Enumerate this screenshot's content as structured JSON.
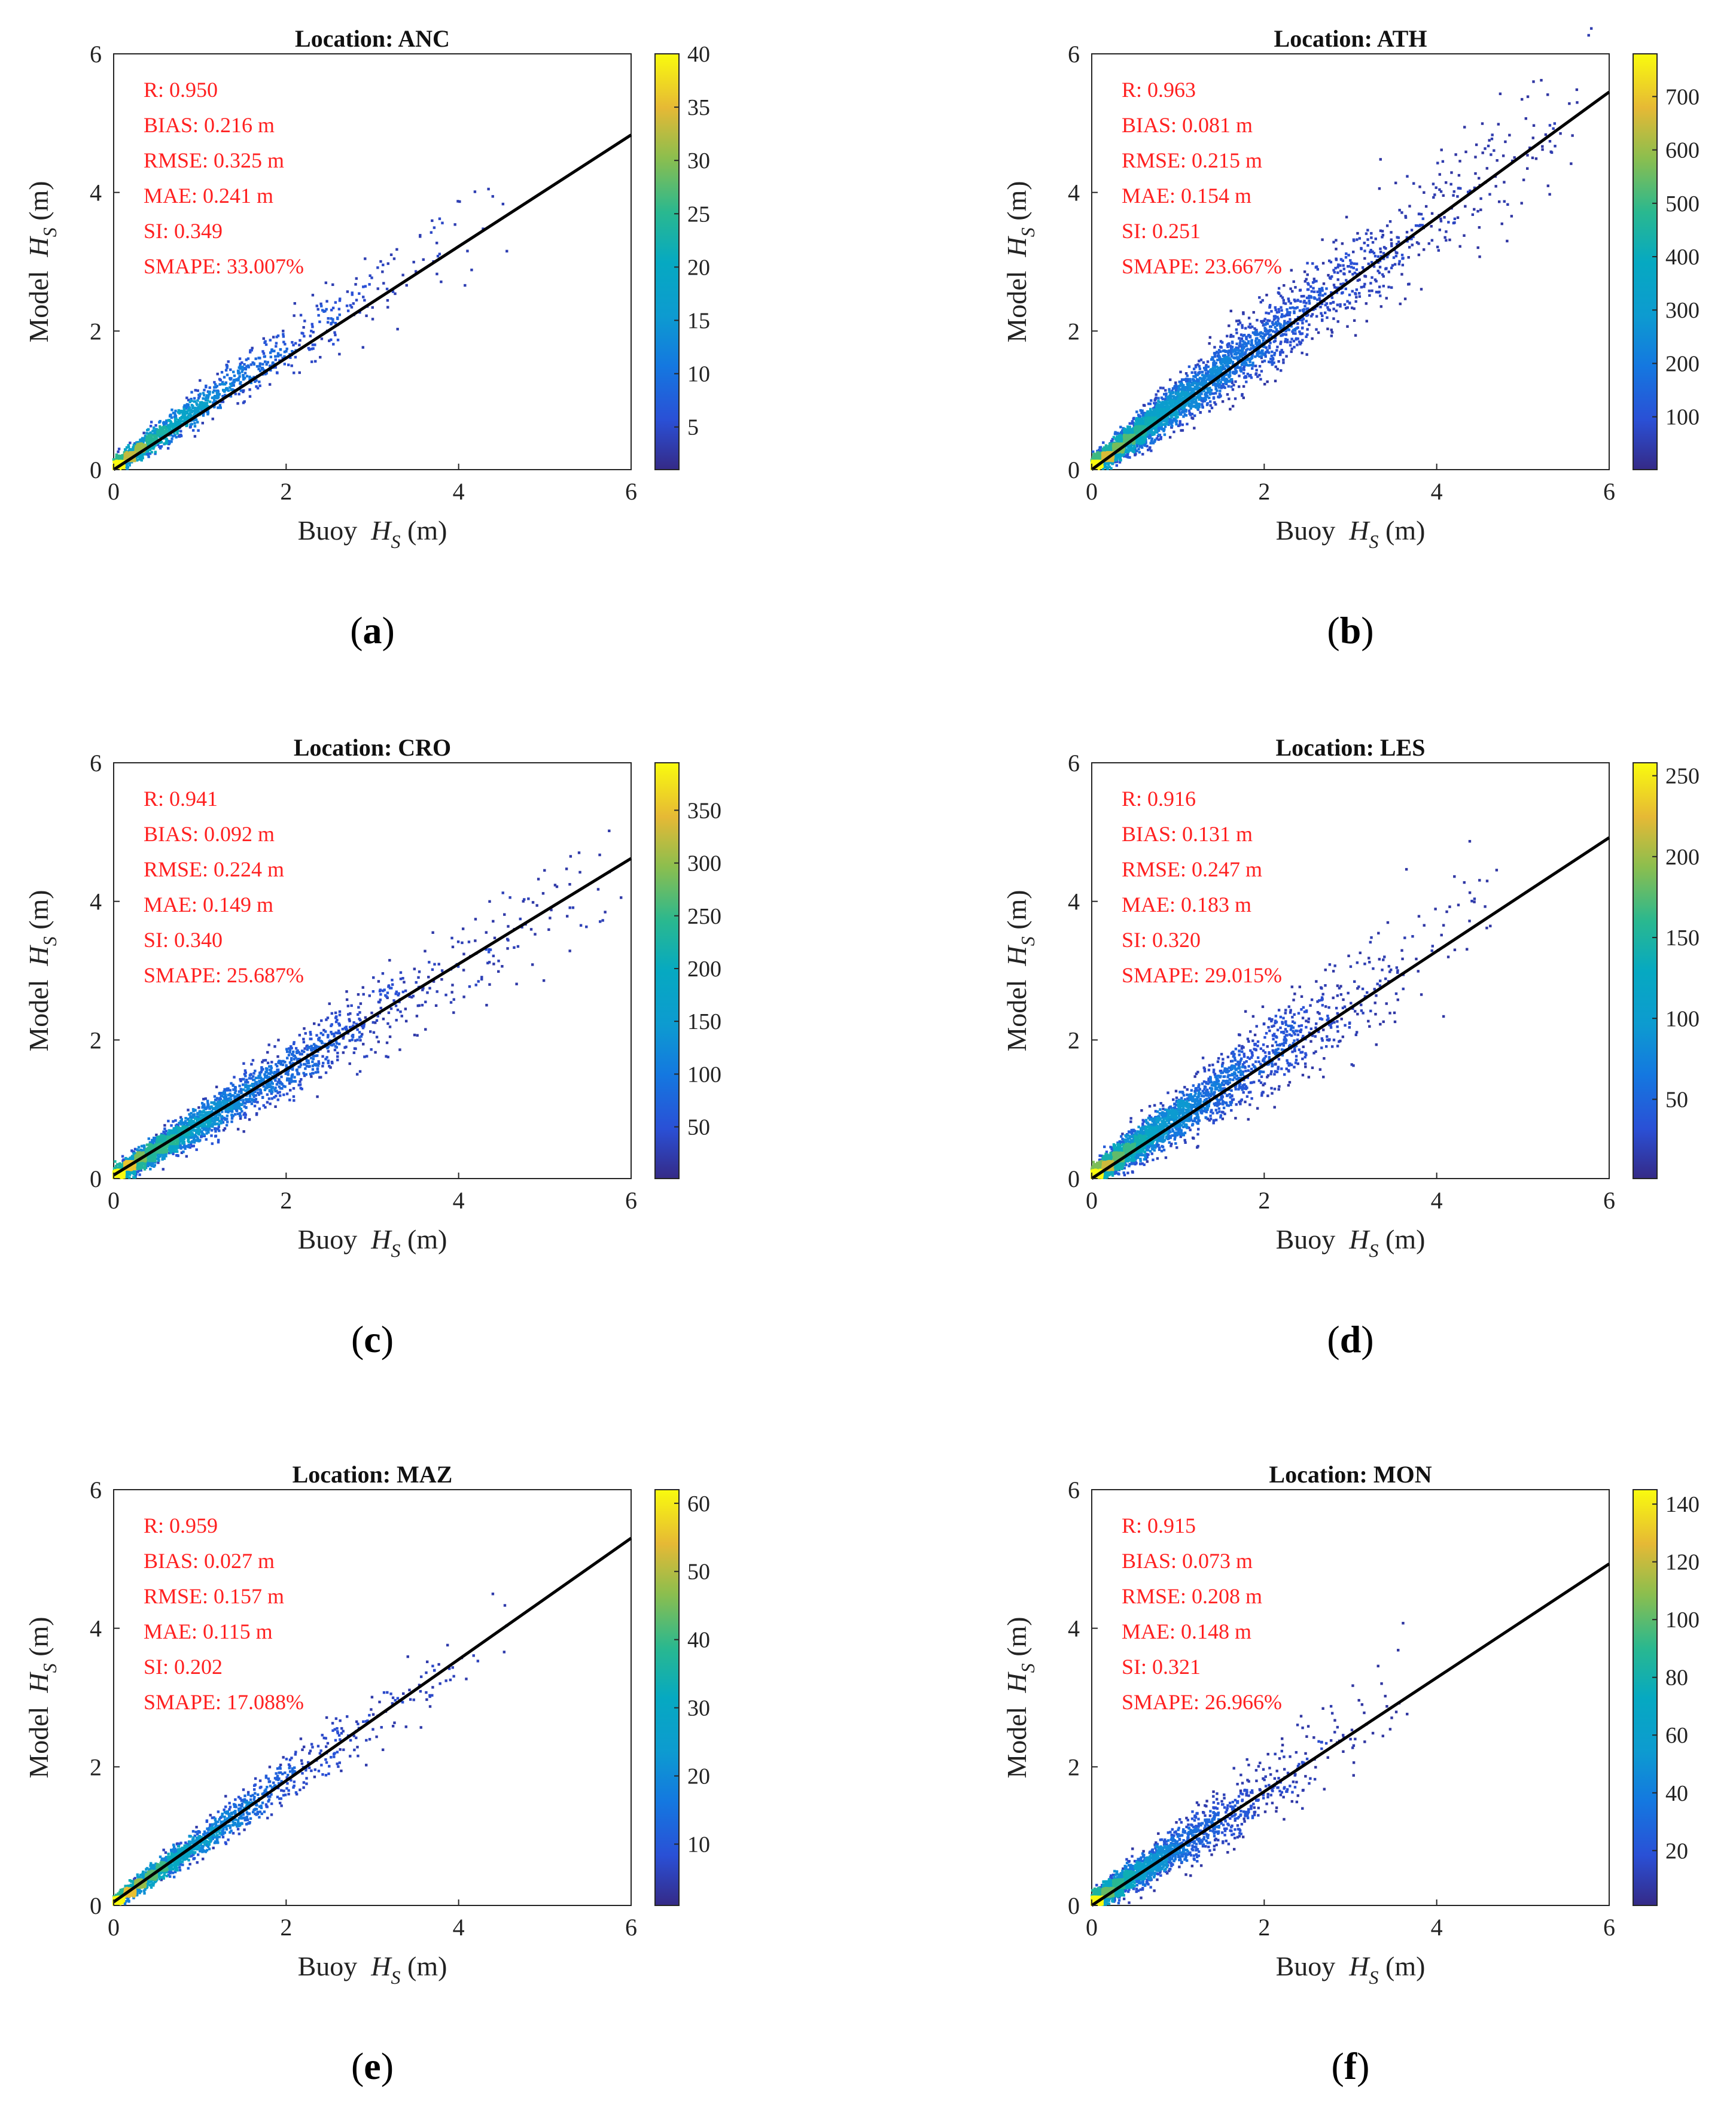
{
  "figure": {
    "description_panels": 6
  },
  "chart_data": [
    {
      "type": "scatter",
      "panel_label": "a",
      "title": "Location: ANC",
      "xlabel_prefix": "Buoy",
      "ylabel_prefix": "Model",
      "var_symbol": "H",
      "var_sub": "S",
      "unit": "(m)",
      "xlim": [
        0,
        6
      ],
      "ylim": [
        0,
        6
      ],
      "xticks": [
        0,
        2,
        4,
        6
      ],
      "yticks": [
        0,
        2,
        4,
        6
      ],
      "fit_line": {
        "x": [
          0,
          6
        ],
        "y": [
          0,
          4.83
        ]
      },
      "colorbar": {
        "min": 1,
        "max": 40,
        "ticks": [
          5,
          10,
          15,
          20,
          25,
          30,
          35,
          40
        ]
      },
      "stats": [
        "R: 0.950",
        "BIAS: 0.216 m",
        "RMSE: 0.325 m",
        "MAE: 0.241 m",
        "SI: 0.349",
        "SMAPE: 33.007%"
      ],
      "scatter": {
        "n": 1400,
        "maxX": 4.6,
        "slope": 0.86,
        "spread": 0.15,
        "seed": 11
      }
    },
    {
      "type": "scatter",
      "panel_label": "b",
      "title": "Location: ATH",
      "xlabel_prefix": "Buoy",
      "ylabel_prefix": "Model",
      "var_symbol": "H",
      "var_sub": "S",
      "unit": "(m)",
      "xlim": [
        0,
        6
      ],
      "ylim": [
        0,
        6
      ],
      "xticks": [
        0,
        2,
        4,
        6
      ],
      "yticks": [
        0,
        2,
        4,
        6
      ],
      "fit_line": {
        "x": [
          0,
          6
        ],
        "y": [
          0,
          5.45
        ]
      },
      "colorbar": {
        "min": 1,
        "max": 780,
        "ticks": [
          100,
          200,
          300,
          400,
          500,
          600,
          700
        ]
      },
      "stats": [
        "R: 0.963",
        "BIAS: 0.081 m",
        "RMSE: 0.215 m",
        "MAE: 0.154 m",
        "SI: 0.251",
        "SMAPE: 23.667%"
      ],
      "scatter": {
        "n": 4200,
        "maxX": 5.8,
        "slope": 0.92,
        "spread": 0.18,
        "seed": 22
      }
    },
    {
      "type": "scatter",
      "panel_label": "c",
      "title": "Location: CRO",
      "xlabel_prefix": "Buoy",
      "ylabel_prefix": "Model",
      "var_symbol": "H",
      "var_sub": "S",
      "unit": "(m)",
      "xlim": [
        0,
        6
      ],
      "ylim": [
        0,
        6
      ],
      "xticks": [
        0,
        2,
        4,
        6
      ],
      "yticks": [
        0,
        2,
        4,
        6
      ],
      "fit_line": {
        "x": [
          0,
          6
        ],
        "y": [
          0.05,
          4.62
        ]
      },
      "colorbar": {
        "min": 1,
        "max": 395,
        "ticks": [
          50,
          100,
          150,
          200,
          250,
          300,
          350
        ]
      },
      "stats": [
        "R: 0.941",
        "BIAS: 0.092 m",
        "RMSE: 0.224 m",
        "MAE: 0.149 m",
        "SI: 0.340",
        "SMAPE: 25.687%"
      ],
      "scatter": {
        "n": 3000,
        "maxX": 5.9,
        "slope": 0.76,
        "spread": 0.15,
        "seed": 33
      }
    },
    {
      "type": "scatter",
      "panel_label": "d",
      "title": "Location: LES",
      "xlabel_prefix": "Buoy",
      "ylabel_prefix": "Model",
      "var_symbol": "H",
      "var_sub": "S",
      "unit": "(m)",
      "xlim": [
        0,
        6
      ],
      "ylim": [
        0,
        6
      ],
      "xticks": [
        0,
        2,
        4,
        6
      ],
      "yticks": [
        0,
        2,
        4,
        6
      ],
      "fit_line": {
        "x": [
          0,
          6
        ],
        "y": [
          0,
          4.92
        ]
      },
      "colorbar": {
        "min": 1,
        "max": 258,
        "ticks": [
          50,
          100,
          150,
          200,
          250
        ]
      },
      "stats": [
        "R: 0.916",
        "BIAS: 0.131 m",
        "RMSE: 0.247 m",
        "MAE: 0.183 m",
        "SI: 0.320",
        "SMAPE: 29.015%"
      ],
      "scatter": {
        "n": 3200,
        "maxX": 4.8,
        "slope": 0.85,
        "spread": 0.2,
        "seed": 44
      }
    },
    {
      "type": "scatter",
      "panel_label": "e",
      "title": "Location: MAZ",
      "xlabel_prefix": "Buoy",
      "ylabel_prefix": "Model",
      "var_symbol": "H",
      "var_sub": "S",
      "unit": "(m)",
      "xlim": [
        0,
        6
      ],
      "ylim": [
        0,
        6
      ],
      "xticks": [
        0,
        2,
        4,
        6
      ],
      "yticks": [
        0,
        2,
        4,
        6
      ],
      "fit_line": {
        "x": [
          0,
          6
        ],
        "y": [
          0.05,
          5.3
        ]
      },
      "colorbar": {
        "min": 1,
        "max": 62,
        "ticks": [
          10,
          20,
          30,
          40,
          50,
          60
        ]
      },
      "stats": [
        "R: 0.959",
        "BIAS: 0.027 m",
        "RMSE: 0.157 m",
        "MAE: 0.115 m",
        "SI: 0.202",
        "SMAPE: 17.088%"
      ],
      "scatter": {
        "n": 1900,
        "maxX": 4.6,
        "slope": 0.88,
        "spread": 0.12,
        "seed": 55
      }
    },
    {
      "type": "scatter",
      "panel_label": "f",
      "title": "Location: MON",
      "xlabel_prefix": "Buoy",
      "ylabel_prefix": "Model",
      "var_symbol": "H",
      "var_sub": "S",
      "unit": "(m)",
      "xlim": [
        0,
        6
      ],
      "ylim": [
        0,
        6
      ],
      "xticks": [
        0,
        2,
        4,
        6
      ],
      "yticks": [
        0,
        2,
        4,
        6
      ],
      "fit_line": {
        "x": [
          0,
          6
        ],
        "y": [
          0,
          4.93
        ]
      },
      "colorbar": {
        "min": 1,
        "max": 145,
        "ticks": [
          20,
          40,
          60,
          80,
          100,
          120,
          140
        ]
      },
      "stats": [
        "R: 0.915",
        "BIAS: 0.073 m",
        "RMSE: 0.208 m",
        "MAE: 0.148 m",
        "SI: 0.321",
        "SMAPE: 26.966%"
      ],
      "scatter": {
        "n": 2400,
        "maxX": 3.7,
        "slope": 0.8,
        "spread": 0.18,
        "seed": 66
      }
    }
  ]
}
